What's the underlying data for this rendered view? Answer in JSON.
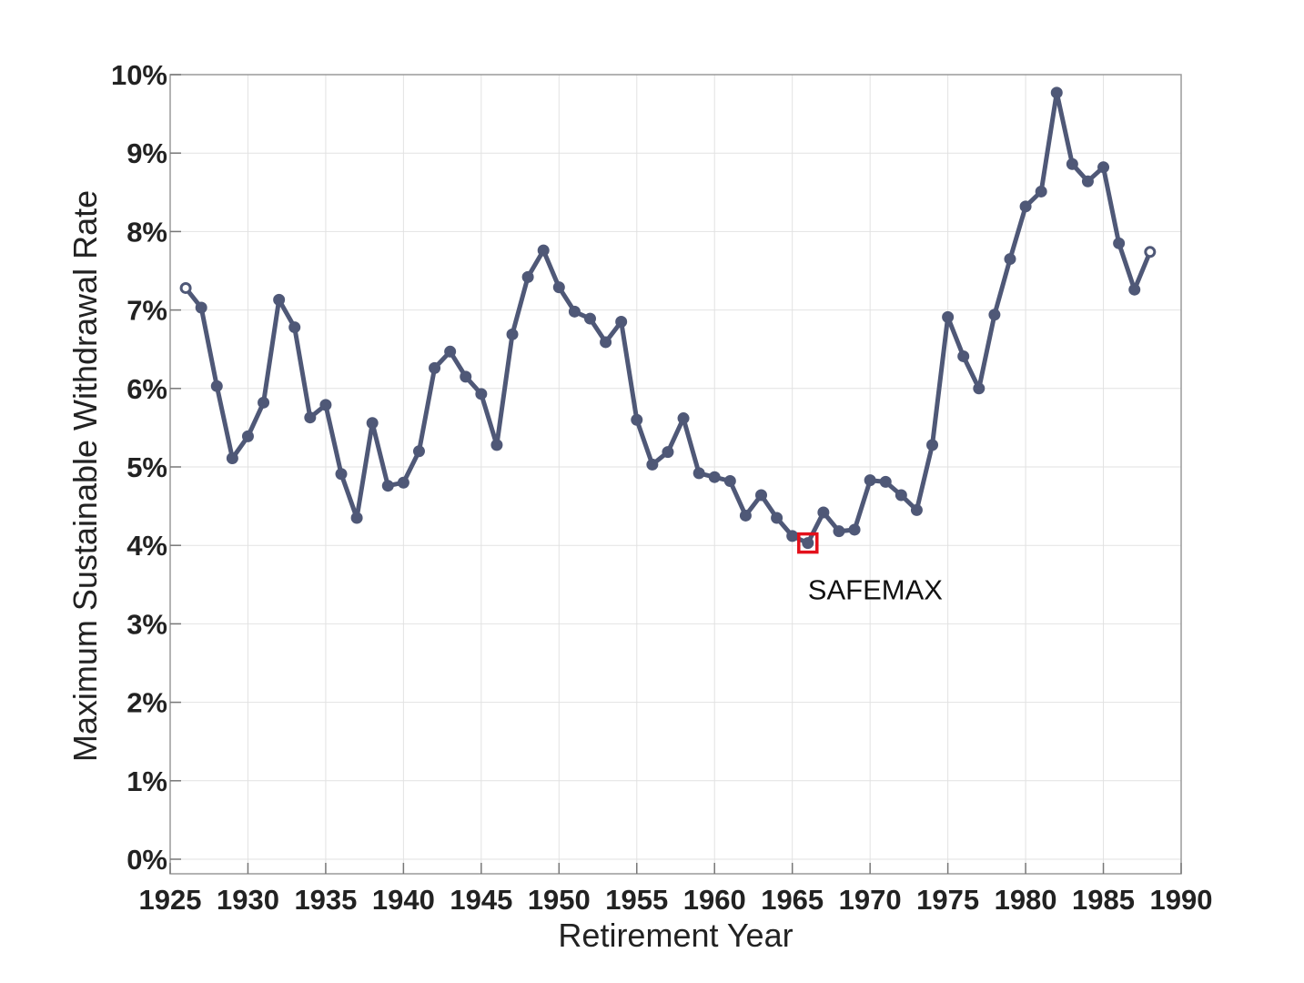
{
  "chart_data": {
    "type": "line",
    "title": "",
    "xlabel": "Retirement Year",
    "ylabel": "Maximum Sustainable Withdrawal Rate",
    "xlim": [
      1925,
      1990
    ],
    "ylim": [
      0,
      10
    ],
    "x_ticks": [
      1925,
      1930,
      1935,
      1940,
      1945,
      1950,
      1955,
      1960,
      1965,
      1970,
      1975,
      1980,
      1985,
      1990
    ],
    "y_ticks": [
      0,
      1,
      2,
      3,
      4,
      5,
      6,
      7,
      8,
      9,
      10
    ],
    "y_tick_suffix": "%",
    "grid": true,
    "line_color": "#4f5877",
    "highlight_color": "#e3101b",
    "series": [
      {
        "x": [
          1926,
          1927,
          1928,
          1929,
          1930,
          1931,
          1932,
          1933,
          1934,
          1935,
          1936,
          1937,
          1938,
          1939,
          1940,
          1941,
          1942,
          1943,
          1944,
          1945,
          1946,
          1947,
          1948,
          1949,
          1950,
          1951,
          1952,
          1953,
          1954,
          1955,
          1956,
          1957,
          1958,
          1959,
          1960,
          1961,
          1962,
          1963,
          1964,
          1965,
          1966,
          1967,
          1968,
          1969,
          1970,
          1971,
          1972,
          1973,
          1974,
          1975,
          1976,
          1977,
          1978,
          1979,
          1980,
          1981,
          1982,
          1983,
          1984,
          1985,
          1986,
          1987,
          1988
        ],
        "values": [
          7.28,
          7.03,
          6.03,
          5.11,
          5.39,
          5.82,
          7.13,
          6.78,
          5.63,
          5.79,
          4.91,
          4.35,
          5.56,
          4.76,
          4.8,
          5.2,
          6.26,
          6.47,
          6.15,
          5.93,
          5.28,
          6.69,
          7.42,
          7.76,
          7.29,
          6.98,
          6.89,
          6.59,
          6.85,
          5.6,
          5.03,
          5.19,
          5.62,
          4.92,
          4.87,
          4.82,
          4.38,
          4.64,
          4.35,
          4.12,
          4.03,
          4.42,
          4.18,
          4.2,
          4.83,
          4.81,
          4.64,
          4.45,
          5.28,
          6.91,
          6.41,
          6.0,
          6.94,
          7.65,
          8.32,
          8.51,
          9.77,
          8.86,
          8.64,
          8.82,
          7.85,
          7.26,
          7.74
        ]
      }
    ],
    "annotation": {
      "label": "SAFEMAX",
      "x": 1966,
      "y": 4.03
    }
  }
}
